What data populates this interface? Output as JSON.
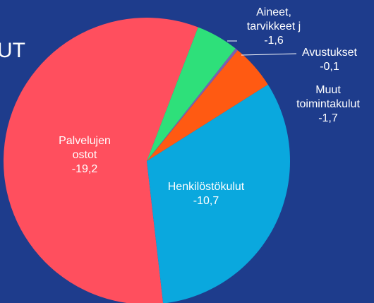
{
  "chart_data": {
    "type": "pie",
    "title": "UT",
    "categories": [
      "Aineet, tarvikkeet j",
      "Avustukset",
      "Muut toimintakulut",
      "Henkilöstökulut",
      "Palvelujen ostot"
    ],
    "values": [
      -1.6,
      -0.1,
      -1.7,
      -10.7,
      -19.2
    ],
    "value_labels": [
      "-1,6",
      "-0,1",
      "-1,7",
      "-10,7",
      "-19,2"
    ],
    "colors": [
      "#2ee07a",
      "#7d5fb0",
      "#ff5a12",
      "#0aa8de",
      "#ff4f5e"
    ]
  }
}
